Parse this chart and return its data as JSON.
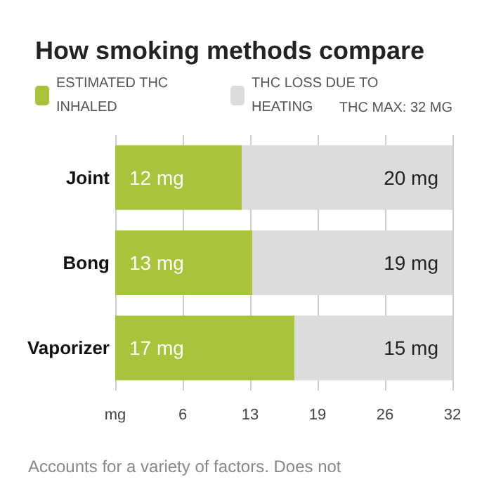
{
  "chart_data": {
    "type": "bar",
    "orientation": "horizontal",
    "stacked": true,
    "title": "How smoking methods compare",
    "categories": [
      "Joint",
      "Bong",
      "Vaporizer"
    ],
    "series": [
      {
        "name": "ESTIMATED THC INHALED",
        "color": "#a8c43c",
        "values": [
          12,
          13,
          17
        ],
        "value_labels": [
          "12 mg",
          "13 mg",
          "17 mg"
        ]
      },
      {
        "name": "THC LOSS DUE TO HEATING",
        "color": "#dcdcdc",
        "values": [
          20,
          19,
          15
        ],
        "value_labels": [
          "20 mg",
          "19 mg",
          "15 mg"
        ]
      }
    ],
    "xlim": [
      0,
      32
    ],
    "xticks": [
      {
        "value": 0,
        "label": "mg"
      },
      {
        "value": 6.4,
        "label": "6"
      },
      {
        "value": 12.8,
        "label": "13"
      },
      {
        "value": 19.2,
        "label": "19"
      },
      {
        "value": 25.6,
        "label": "26"
      },
      32
    ],
    "grid": "x",
    "legend": "top",
    "annotations": [
      "THC MAX: 32 MG",
      "Accounts for a variety of factors. Does not"
    ]
  }
}
